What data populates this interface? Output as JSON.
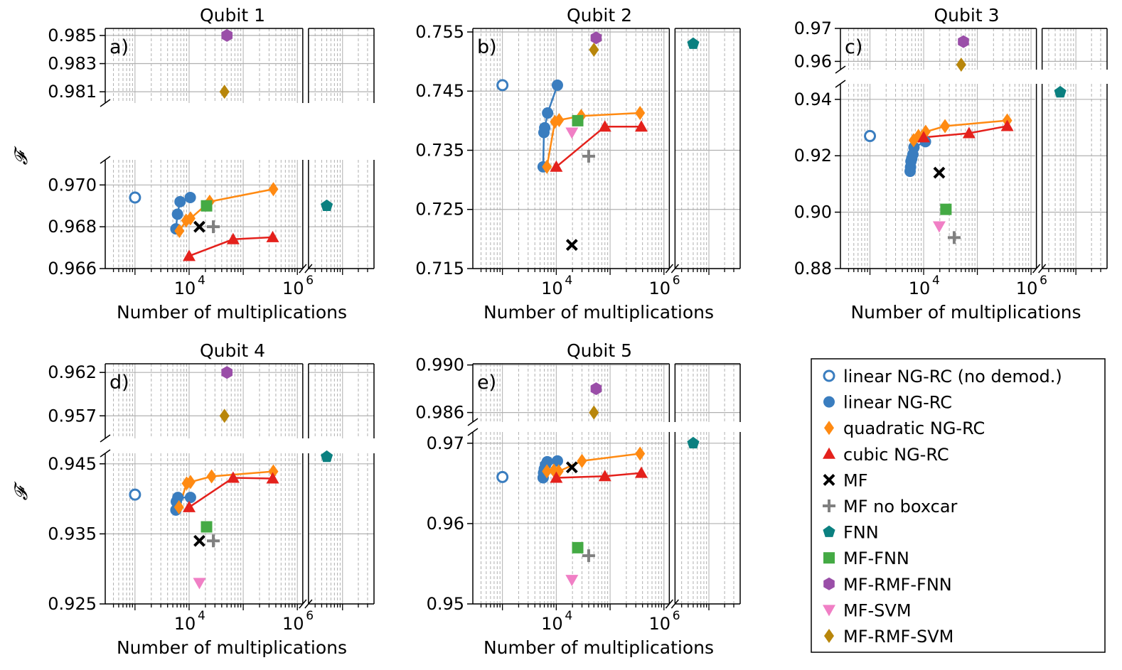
{
  "colors": {
    "linear_nd": "#3a7dbf",
    "linear": "#3a7dbf",
    "quadratic": "#ff8a12",
    "cubic": "#e4211c",
    "mf": "#000000",
    "mf_nobox": "#808080",
    "fnn": "#0b8080",
    "mf_fnn": "#44aa44",
    "mf_rmf_fnn": "#9a4ea8",
    "mf_svm": "#f07fc5",
    "mf_rmf_svm": "#b8860b",
    "grid": "#b0b0b0"
  },
  "ylabel": "𝓕",
  "legend": [
    {
      "key": "linear_nd",
      "label": "linear NG-RC (no demod.)",
      "marker": "circle-open"
    },
    {
      "key": "linear",
      "label": "linear NG-RC",
      "marker": "circle"
    },
    {
      "key": "quadratic",
      "label": "quadratic NG-RC",
      "marker": "diamond"
    },
    {
      "key": "cubic",
      "label": "cubic NG-RC",
      "marker": "triangle"
    },
    {
      "key": "mf",
      "label": "MF",
      "marker": "x"
    },
    {
      "key": "mf_nobox",
      "label": "MF no boxcar",
      "marker": "plus"
    },
    {
      "key": "fnn",
      "label": "FNN",
      "marker": "pentagon"
    },
    {
      "key": "mf_fnn",
      "label": "MF-FNN",
      "marker": "square"
    },
    {
      "key": "mf_rmf_fnn",
      "label": "MF-RMF-FNN",
      "marker": "hexagon"
    },
    {
      "key": "mf_svm",
      "label": "MF-SVM",
      "marker": "triangle-down"
    },
    {
      "key": "mf_rmf_svm",
      "label": "MF-RMF-SVM",
      "marker": "diamond"
    }
  ],
  "chart_data": [
    {
      "type": "scatter",
      "title": "Qubit 1",
      "letter": "a)",
      "xlabel": "Number of multiplications",
      "show_ylabel": true,
      "xticks": [
        {
          "exp": 4,
          "label": "10",
          "sup": "4"
        },
        {
          "exp": 6,
          "label": "10",
          "sup": "6"
        }
      ],
      "upper": {
        "range": [
          0.9802,
          0.9855
        ],
        "ticks": [
          "0.985",
          "0.983",
          "0.981"
        ]
      },
      "lower": {
        "range": [
          0.966,
          0.9712
        ],
        "ticks": [
          "0.970",
          "0.968",
          "0.966"
        ]
      },
      "series": {
        "linear_nd": [
          [
            1000,
            0.9694
          ]
        ],
        "linear": [
          [
            5700,
            0.9679
          ],
          [
            6100,
            0.9686
          ],
          [
            6800,
            0.9692
          ],
          [
            10500,
            0.9694
          ]
        ],
        "quadratic": [
          [
            6600,
            0.9678
          ],
          [
            8800,
            0.9683
          ],
          [
            10600,
            0.9684
          ],
          [
            24000,
            0.9692
          ],
          [
            360000,
            0.9698
          ]
        ],
        "cubic": [
          [
            10000,
            0.9666
          ],
          [
            65000,
            0.9674
          ],
          [
            350000,
            0.9675
          ]
        ],
        "mf": [
          [
            15500,
            0.968
          ]
        ],
        "mf_nobox": [
          [
            28000,
            0.968
          ]
        ],
        "fnn": [
          [
            5000000,
            0.969
          ]
        ],
        "mf_fnn": [
          [
            21000,
            0.969
          ]
        ],
        "mf_rmf_fnn": [
          [
            50000,
            0.985
          ]
        ],
        "mf_rmf_svm": [
          [
            45000,
            0.981
          ]
        ]
      }
    },
    {
      "type": "scatter",
      "title": "Qubit 2",
      "letter": "b)",
      "xlabel": "Number of multiplications",
      "show_ylabel": false,
      "xticks": [
        {
          "exp": 4,
          "label": "10",
          "sup": "4"
        },
        {
          "exp": 6,
          "label": "10",
          "sup": "6"
        }
      ],
      "single": {
        "range": [
          0.715,
          0.7556
        ],
        "ticks": [
          "0.755",
          "0.745",
          "0.735",
          "0.725",
          "0.715"
        ]
      },
      "series": {
        "linear_nd": [
          [
            1000,
            0.746
          ]
        ],
        "linear": [
          [
            5700,
            0.7322
          ],
          [
            5900,
            0.738
          ],
          [
            6100,
            0.7388
          ],
          [
            6900,
            0.7413
          ],
          [
            10500,
            0.746
          ]
        ],
        "quadratic": [
          [
            6700,
            0.7322
          ],
          [
            9400,
            0.7398
          ],
          [
            11300,
            0.7401
          ],
          [
            29000,
            0.7408
          ],
          [
            360000,
            0.7413
          ]
        ],
        "cubic": [
          [
            10000,
            0.7322
          ],
          [
            80000,
            0.739
          ],
          [
            380000,
            0.739
          ]
        ],
        "mf": [
          [
            19500,
            0.719
          ]
        ],
        "mf_nobox": [
          [
            40000,
            0.734
          ]
        ],
        "fnn": [
          [
            5000000,
            0.753
          ]
        ],
        "mf_fnn": [
          [
            25000,
            0.74
          ]
        ],
        "mf_rmf_fnn": [
          [
            55000,
            0.754
          ]
        ],
        "mf_svm": [
          [
            19500,
            0.738
          ]
        ],
        "mf_rmf_svm": [
          [
            50000,
            0.752
          ]
        ]
      }
    },
    {
      "type": "scatter",
      "title": "Qubit 3",
      "letter": "c)",
      "xlabel": "Number of multiplications",
      "show_ylabel": false,
      "xticks": [
        {
          "exp": 4,
          "label": "10",
          "sup": "4"
        },
        {
          "exp": 6,
          "label": "10",
          "sup": "6"
        }
      ],
      "upper": {
        "range": [
          0.9575,
          0.97
        ],
        "ticks": [
          "0.97",
          "0.96"
        ]
      },
      "lower": {
        "range": [
          0.88,
          0.9455
        ],
        "ticks": [
          "0.94",
          "0.92",
          "0.90",
          "0.88"
        ]
      },
      "series": {
        "linear_nd": [
          [
            1000,
            0.927
          ]
        ],
        "linear": [
          [
            5600,
            0.9145
          ],
          [
            5700,
            0.916
          ],
          [
            5800,
            0.918
          ],
          [
            6000,
            0.919
          ],
          [
            6300,
            0.9205
          ],
          [
            6600,
            0.923
          ],
          [
            10800,
            0.925
          ]
        ],
        "quadratic": [
          [
            6500,
            0.9255
          ],
          [
            8000,
            0.927
          ],
          [
            10900,
            0.9285
          ],
          [
            25000,
            0.9305
          ],
          [
            360000,
            0.9325
          ]
        ],
        "cubic": [
          [
            10000,
            0.9265
          ],
          [
            70000,
            0.928
          ],
          [
            360000,
            0.9305
          ]
        ],
        "mf": [
          [
            19500,
            0.914
          ]
        ],
        "mf_nobox": [
          [
            37000,
            0.891
          ]
        ],
        "fnn": [
          [
            5000000,
            0.9425
          ]
        ],
        "mf_fnn": [
          [
            26000,
            0.901
          ]
        ],
        "mf_rmf_fnn": [
          [
            55000,
            0.966
          ]
        ],
        "mf_svm": [
          [
            19500,
            0.895
          ]
        ],
        "mf_rmf_svm": [
          [
            50000,
            0.959
          ]
        ]
      }
    },
    {
      "type": "scatter",
      "title": "Qubit 4",
      "letter": "d)",
      "xlabel": "Number of multiplications",
      "show_ylabel": true,
      "xticks": [
        {
          "exp": 4,
          "label": "10",
          "sup": "4"
        },
        {
          "exp": 6,
          "label": "10",
          "sup": "6"
        }
      ],
      "upper": {
        "range": [
          0.9544,
          0.963
        ],
        "ticks": [
          "0.962",
          "0.957"
        ]
      },
      "lower": {
        "range": [
          0.925,
          0.9465
        ],
        "ticks": [
          "0.945",
          "0.935",
          "0.925"
        ]
      },
      "series": {
        "linear_nd": [
          [
            1000,
            0.9406
          ]
        ],
        "linear": [
          [
            5700,
            0.9384
          ],
          [
            5800,
            0.9396
          ],
          [
            6200,
            0.9402
          ],
          [
            10600,
            0.9402
          ]
        ],
        "quadratic": [
          [
            6500,
            0.9388
          ],
          [
            9000,
            0.9422
          ],
          [
            10600,
            0.9424
          ],
          [
            26000,
            0.9432
          ],
          [
            360000,
            0.9439
          ]
        ],
        "cubic": [
          [
            10000,
            0.9388
          ],
          [
            65000,
            0.943
          ],
          [
            350000,
            0.9429
          ]
        ],
        "mf": [
          [
            15500,
            0.934
          ]
        ],
        "mf_nobox": [
          [
            28000,
            0.934
          ]
        ],
        "fnn": [
          [
            5000000,
            0.946
          ]
        ],
        "mf_fnn": [
          [
            21000,
            0.936
          ]
        ],
        "mf_rmf_fnn": [
          [
            50000,
            0.962
          ]
        ],
        "mf_svm": [
          [
            15500,
            0.928
          ]
        ],
        "mf_rmf_svm": [
          [
            45000,
            0.957
          ]
        ]
      }
    },
    {
      "type": "scatter",
      "title": "Qubit 5",
      "letter": "e)",
      "xlabel": "Number of multiplications",
      "show_ylabel": false,
      "xticks": [
        {
          "exp": 4,
          "label": "10",
          "sup": "4"
        },
        {
          "exp": 6,
          "label": "10",
          "sup": "6"
        }
      ],
      "upper": {
        "range": [
          0.9852,
          0.9901
        ],
        "ticks": [
          "0.990",
          "0.986"
        ]
      },
      "lower": {
        "range": [
          0.95,
          0.9714
        ],
        "ticks": [
          "0.97",
          "0.96",
          "0.95"
        ]
      },
      "series": {
        "linear_nd": [
          [
            1000,
            0.9658
          ]
        ],
        "linear": [
          [
            5700,
            0.9657
          ],
          [
            5800,
            0.9663
          ],
          [
            6000,
            0.9668
          ],
          [
            6300,
            0.9673
          ],
          [
            6800,
            0.9677
          ],
          [
            10500,
            0.9678
          ]
        ],
        "quadratic": [
          [
            6700,
            0.9665
          ],
          [
            9000,
            0.9666
          ],
          [
            11100,
            0.9665
          ],
          [
            30000,
            0.9678
          ],
          [
            360000,
            0.9687
          ]
        ],
        "cubic": [
          [
            10000,
            0.9657
          ],
          [
            80000,
            0.9659
          ],
          [
            380000,
            0.9663
          ]
        ],
        "mf": [
          [
            19500,
            0.967
          ]
        ],
        "mf_nobox": [
          [
            40000,
            0.956
          ]
        ],
        "fnn": [
          [
            5000000,
            0.97
          ]
        ],
        "mf_fnn": [
          [
            25000,
            0.957
          ]
        ],
        "mf_rmf_fnn": [
          [
            55000,
            0.988
          ]
        ],
        "mf_svm": [
          [
            19500,
            0.953
          ]
        ],
        "mf_rmf_svm": [
          [
            50000,
            0.986
          ]
        ]
      }
    }
  ]
}
